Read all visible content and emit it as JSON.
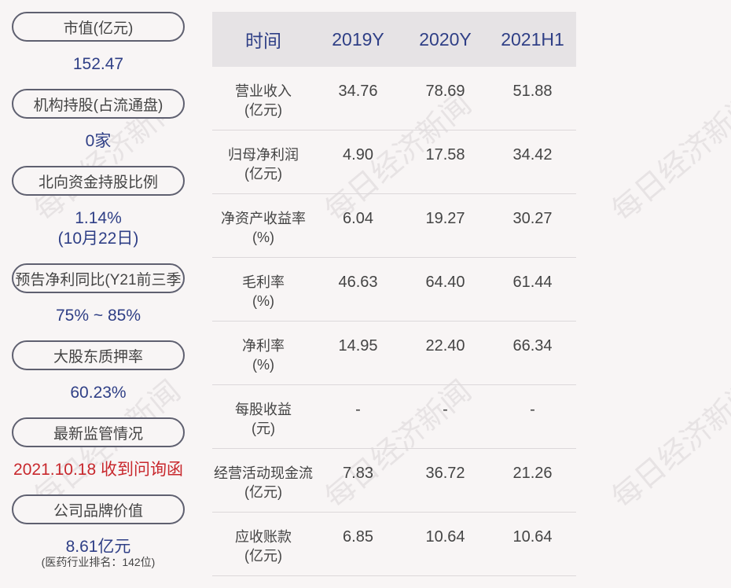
{
  "left": {
    "items": [
      {
        "label": "市值(亿元)",
        "value": "152.47"
      },
      {
        "label": "机构持股(占流通盘)",
        "value": "0家"
      },
      {
        "label": "北向资金持股比例",
        "value": "1.14%",
        "value2": "(10月22日)"
      },
      {
        "label": "预告净利同比(Y21前三季",
        "value": "75% ~ 85%"
      },
      {
        "label": "大股东质押率",
        "value": "60.23%"
      },
      {
        "label": "最新监管情况",
        "value": "2021.10.18 收到问询函"
      },
      {
        "label": "公司品牌价值",
        "value": "8.61亿元",
        "note": "(医药行业排名：142位)"
      }
    ]
  },
  "table": {
    "headers": [
      "时间",
      "2019Y",
      "2020Y",
      "2021H1"
    ],
    "rows": [
      {
        "name": "营业收入",
        "unit": "(亿元)",
        "values": [
          "34.76",
          "78.69",
          "51.88"
        ]
      },
      {
        "name": "归母净利润",
        "unit": "(亿元)",
        "values": [
          "4.90",
          "17.58",
          "34.42"
        ]
      },
      {
        "name": "净资产收益率",
        "unit": "(%)",
        "values": [
          "6.04",
          "19.27",
          "30.27"
        ]
      },
      {
        "name": "毛利率",
        "unit": "(%)",
        "values": [
          "46.63",
          "64.40",
          "61.44"
        ]
      },
      {
        "name": "净利率",
        "unit": "(%)",
        "values": [
          "14.95",
          "22.40",
          "66.34"
        ]
      },
      {
        "name": "每股收益",
        "unit": "(元)",
        "values": [
          "-",
          "-",
          "-"
        ]
      },
      {
        "name": "经营活动现金流",
        "unit": "(亿元)",
        "values": [
          "7.83",
          "36.72",
          "21.26"
        ]
      },
      {
        "name": "应收账款",
        "unit": "(亿元)",
        "values": [
          "6.85",
          "10.64",
          "10.64"
        ]
      }
    ]
  },
  "watermark": "每日经济新闻",
  "colors": {
    "accent": "#2f3f86",
    "alert": "#c8282d",
    "header_bg": "#e6e3e5",
    "background": "#f8f5f5"
  }
}
